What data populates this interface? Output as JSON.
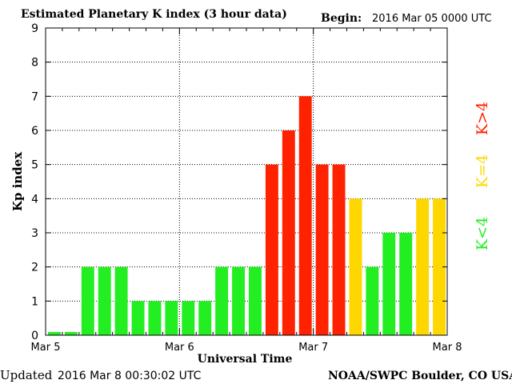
{
  "header": {
    "title": "Estimated Planetary K index (3 hour data)",
    "begin_label": "Begin:",
    "begin_value": "2016 Mar 05 0000 UTC"
  },
  "footer": {
    "updated_label": "Updated",
    "updated_value": "2016 Mar  8 00:30:02 UTC",
    "source": "NOAA/SWPC Boulder, CO USA"
  },
  "legend": {
    "high": {
      "label": "K>4",
      "color": "#ff2200"
    },
    "equal": {
      "label": "K=4",
      "color": "#ffd700"
    },
    "low": {
      "label": "K<4",
      "color": "#22ee22"
    }
  },
  "chart_data": {
    "type": "bar",
    "title": "Estimated Planetary K index (3 hour data)",
    "xlabel": "Universal Time",
    "ylabel": "Kp index",
    "ylim": [
      0,
      9
    ],
    "yticks": [
      "0",
      "1",
      "2",
      "3",
      "4",
      "5",
      "6",
      "7",
      "8",
      "9"
    ],
    "xticks": [
      "Mar 5",
      "Mar 6",
      "Mar 7",
      "Mar 8"
    ],
    "grid": true,
    "bins_per_day": 8,
    "days": 3,
    "values": [
      0,
      0,
      2,
      2,
      2,
      1,
      1,
      1,
      1,
      1,
      2,
      2,
      2,
      5,
      6,
      7,
      5,
      5,
      4,
      2,
      3,
      3,
      4,
      4
    ],
    "colors": {
      "above4": "#ff2200",
      "equal4": "#ffd700",
      "below4": "#22ee22"
    }
  }
}
